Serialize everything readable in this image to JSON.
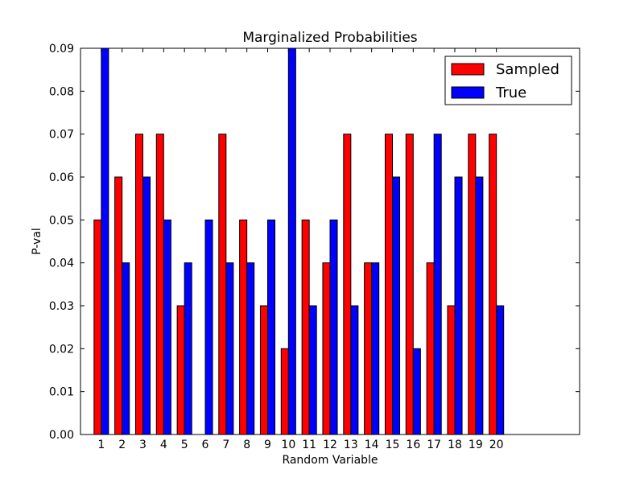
{
  "chart_data": {
    "type": "bar",
    "title": "Marginalized Probabilities",
    "xlabel": "Random Variable",
    "ylabel": "P-val",
    "categories": [
      "1",
      "2",
      "3",
      "4",
      "5",
      "6",
      "7",
      "8",
      "9",
      "10",
      "11",
      "12",
      "13",
      "14",
      "15",
      "16",
      "17",
      "18",
      "19",
      "20"
    ],
    "series": [
      {
        "name": "Sampled",
        "color": "#ff0000",
        "values": [
          0.05,
          0.06,
          0.07,
          0.07,
          0.03,
          0.0,
          0.07,
          0.05,
          0.03,
          0.02,
          0.05,
          0.04,
          0.07,
          0.04,
          0.07,
          0.07,
          0.04,
          0.03,
          0.07,
          0.07
        ]
      },
      {
        "name": "True",
        "color": "#0000ff",
        "values": [
          0.09,
          0.04,
          0.06,
          0.05,
          0.04,
          0.05,
          0.04,
          0.04,
          0.05,
          0.09,
          0.03,
          0.05,
          0.03,
          0.04,
          0.06,
          0.02,
          0.07,
          0.06,
          0.06,
          0.03
        ]
      }
    ],
    "ylim": [
      0,
      0.09
    ],
    "xlim": [
      0,
      24
    ],
    "yticks": [
      "0.00",
      "0.01",
      "0.02",
      "0.03",
      "0.04",
      "0.05",
      "0.06",
      "0.07",
      "0.08",
      "0.09"
    ],
    "grid": false,
    "legend_position": "top-right"
  }
}
